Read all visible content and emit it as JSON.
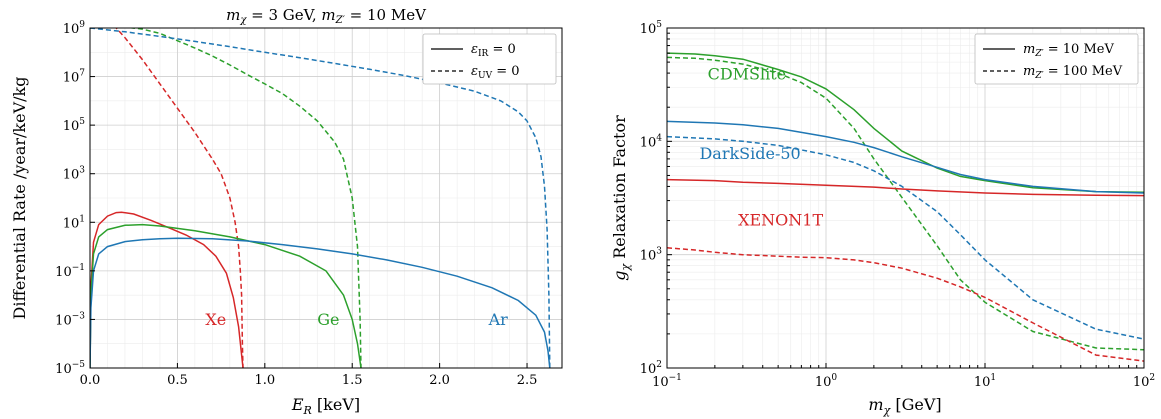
{
  "colors": {
    "xe": "#d62728",
    "ge": "#2ca02c",
    "ar": "#1f77b4"
  },
  "chart_data": [
    {
      "type": "line",
      "title": "m_χ = 3 GeV, m_Z′ = 10 MeV",
      "xlabel": "E_R [keV]",
      "ylabel": "Differential Rate /year/keV/kg",
      "xlim": [
        0,
        2.7
      ],
      "ylim": [
        1e-05,
        1000000000.0
      ],
      "yscale": "log",
      "xticks": [
        "0.0",
        "0.5",
        "1.0",
        "1.5",
        "2.0",
        "2.5"
      ],
      "yticks": [
        "10^−5",
        "10^−3",
        "10^−1",
        "10^1",
        "10^3",
        "10^5",
        "10^7",
        "10^9"
      ],
      "grid": true,
      "legend_position": "top-right",
      "legend": [
        {
          "label": "ε_IR = 0",
          "style": "solid"
        },
        {
          "label": "ε_UV = 0",
          "style": "dashed"
        }
      ],
      "annotations": [
        {
          "text": "Xe",
          "color": "xe",
          "x": 0.66,
          "y": 0.0006
        },
        {
          "text": "Ge",
          "color": "ge",
          "x": 1.3,
          "y": 0.0006
        },
        {
          "text": "Ar",
          "color": "ar",
          "x": 2.28,
          "y": 0.0006
        }
      ],
      "series": [
        {
          "target": "Xe",
          "color": "xe",
          "style": "solid",
          "x": [
            0.0,
            0.005,
            0.02,
            0.05,
            0.1,
            0.15,
            0.18,
            0.25,
            0.35,
            0.45,
            0.55,
            0.65,
            0.72,
            0.78,
            0.82,
            0.85,
            0.865,
            0.875
          ],
          "y": [
            1e-05,
            0.02,
            1.5,
            8,
            18,
            25,
            26,
            22,
            12,
            6,
            3,
            1.2,
            0.4,
            0.08,
            0.008,
            0.0005,
            5e-05,
            1e-05
          ]
        },
        {
          "target": "Xe",
          "color": "xe",
          "style": "dashed",
          "x": [
            0.0,
            0.1,
            0.15,
            0.2,
            0.3,
            0.4,
            0.5,
            0.6,
            0.7,
            0.75,
            0.8,
            0.83,
            0.85,
            0.86,
            0.867,
            0.872,
            0.875
          ],
          "y": [
            1000000000.0,
            1500000000.0,
            1000000000.0,
            400000000.0,
            50000000.0,
            5000000.0,
            500000.0,
            50000.0,
            4000.0,
            1000.0,
            100,
            10,
            1,
            0.1,
            0.01,
            0.0001,
            1e-05
          ]
        },
        {
          "target": "Ge",
          "color": "ge",
          "style": "solid",
          "x": [
            0.0,
            0.005,
            0.02,
            0.05,
            0.1,
            0.2,
            0.3,
            0.4,
            0.6,
            0.8,
            1.0,
            1.2,
            1.35,
            1.45,
            1.5,
            1.53,
            1.55
          ],
          "y": [
            1e-05,
            0.01,
            0.5,
            2.5,
            5,
            7.5,
            8,
            7,
            4.5,
            2.5,
            1.2,
            0.4,
            0.1,
            0.01,
            0.001,
            0.0001,
            1e-05
          ]
        },
        {
          "target": "Ge",
          "color": "ge",
          "style": "dashed",
          "x": [
            0.0,
            0.2,
            0.3,
            0.4,
            0.5,
            0.6,
            0.7,
            0.8,
            0.9,
            1.0,
            1.1,
            1.2,
            1.3,
            1.4,
            1.45,
            1.5,
            1.53,
            1.545,
            1.55
          ],
          "y": [
            1000000000.0,
            1100000000.0,
            900000000.0,
            600000000.0,
            300000000.0,
            150000000.0,
            70000000.0,
            30000000.0,
            12000000.0,
            5000000.0,
            2000000.0,
            600000.0,
            150000.0,
            20000.0,
            4000.0,
            100,
            1,
            0.001,
            1e-05
          ]
        },
        {
          "target": "Ar",
          "color": "ar",
          "style": "solid",
          "x": [
            0.0,
            0.005,
            0.02,
            0.05,
            0.1,
            0.2,
            0.3,
            0.4,
            0.5,
            0.7,
            0.9,
            1.1,
            1.3,
            1.5,
            1.7,
            1.9,
            2.1,
            2.3,
            2.45,
            2.55,
            2.6,
            2.62,
            2.63
          ],
          "y": [
            1e-05,
            0.003,
            0.1,
            0.5,
            1,
            1.6,
            1.9,
            2.1,
            2.2,
            2.1,
            1.7,
            1.2,
            0.8,
            0.5,
            0.28,
            0.14,
            0.06,
            0.02,
            0.006,
            0.0015,
            0.0003,
            5e-05,
            1e-05
          ]
        },
        {
          "target": "Ar",
          "color": "ar",
          "style": "dashed",
          "x": [
            0.0,
            0.2,
            0.4,
            0.6,
            0.8,
            1.0,
            1.2,
            1.4,
            1.6,
            1.8,
            2.0,
            2.2,
            2.35,
            2.45,
            2.5,
            2.55,
            2.58,
            2.6,
            2.615,
            2.625,
            2.63
          ],
          "y": [
            1000000000.0,
            700000000.0,
            450000000.0,
            280000000.0,
            170000000.0,
            100000000.0,
            60000000.0,
            35000000.0,
            20000000.0,
            11000000.0,
            5500000.0,
            2500000.0,
            1000000.0,
            350000.0,
            150000.0,
            30000.0,
            5000.0,
            300,
            5,
            0.01,
            1e-05
          ]
        }
      ]
    },
    {
      "type": "line",
      "title": "",
      "xlabel": "m_χ [GeV]",
      "ylabel": "g_χ Relaxation Factor",
      "xlim": [
        0.1,
        100
      ],
      "ylim": [
        100,
        100000
      ],
      "xscale": "log",
      "yscale": "log",
      "xticks": [
        "10^−1",
        "10^0",
        "10^1",
        "10^2"
      ],
      "yticks": [
        "10^2",
        "10^3",
        "10^4",
        "10^5"
      ],
      "grid": true,
      "legend_position": "top-right",
      "legend": [
        {
          "label": "m_Z′ = 10 MeV",
          "style": "solid"
        },
        {
          "label": "m_Z′ = 100 MeV",
          "style": "dashed"
        }
      ],
      "annotations": [
        {
          "text": "CDMSlite",
          "color": "ge",
          "x": 0.18,
          "y": 35000
        },
        {
          "text": "DarkSide-50",
          "color": "ar",
          "x": 0.16,
          "y": 7000
        },
        {
          "text": "XENON1T",
          "color": "xe",
          "x": 0.28,
          "y": 1800
        }
      ],
      "series": [
        {
          "target": "CDMSlite",
          "color": "ge",
          "style": "solid",
          "x": [
            0.1,
            0.15,
            0.2,
            0.3,
            0.5,
            0.7,
            1,
            1.5,
            2,
            3,
            5,
            7,
            10,
            20,
            50,
            100
          ],
          "y": [
            60000,
            59000,
            57000,
            53000,
            43000,
            37000,
            29000,
            19000,
            13000,
            8200,
            5800,
            4900,
            4500,
            3900,
            3600,
            3550
          ]
        },
        {
          "target": "CDMSlite",
          "color": "ge",
          "style": "dashed",
          "x": [
            0.1,
            0.15,
            0.2,
            0.3,
            0.5,
            0.7,
            1,
            1.5,
            2,
            3,
            5,
            7,
            10,
            20,
            50,
            100
          ],
          "y": [
            55000,
            54000,
            52000,
            48000,
            40000,
            33000,
            24000,
            13000,
            7000,
            3200,
            1200,
            600,
            380,
            210,
            150,
            145
          ]
        },
        {
          "target": "DarkSide-50",
          "color": "ar",
          "style": "solid",
          "x": [
            0.1,
            0.2,
            0.3,
            0.5,
            0.7,
            1,
            1.5,
            2,
            3,
            5,
            7,
            10,
            20,
            50,
            100
          ],
          "y": [
            15000,
            14500,
            14000,
            13000,
            12000,
            11000,
            9800,
            8800,
            7300,
            5900,
            5100,
            4600,
            4000,
            3600,
            3500
          ]
        },
        {
          "target": "DarkSide-50",
          "color": "ar",
          "style": "dashed",
          "x": [
            0.1,
            0.2,
            0.3,
            0.5,
            0.7,
            1,
            1.5,
            2,
            3,
            5,
            7,
            10,
            20,
            50,
            100
          ],
          "y": [
            11000,
            10500,
            10000,
            9200,
            8400,
            7600,
            6500,
            5500,
            4000,
            2400,
            1500,
            900,
            400,
            220,
            180
          ]
        },
        {
          "target": "XENON1T",
          "color": "xe",
          "style": "solid",
          "x": [
            0.1,
            0.2,
            0.3,
            0.5,
            1,
            2,
            3,
            5,
            10,
            20,
            50,
            100
          ],
          "y": [
            4600,
            4500,
            4350,
            4250,
            4100,
            3950,
            3800,
            3650,
            3500,
            3400,
            3350,
            3320
          ]
        },
        {
          "target": "XENON1T",
          "color": "xe",
          "style": "dashed",
          "x": [
            0.1,
            0.15,
            0.2,
            0.3,
            0.5,
            0.7,
            1,
            1.5,
            2,
            3,
            5,
            7,
            10,
            20,
            50,
            100
          ],
          "y": [
            1150,
            1100,
            1050,
            1000,
            970,
            950,
            940,
            900,
            850,
            760,
            620,
            520,
            420,
            250,
            130,
            115
          ]
        }
      ]
    }
  ]
}
